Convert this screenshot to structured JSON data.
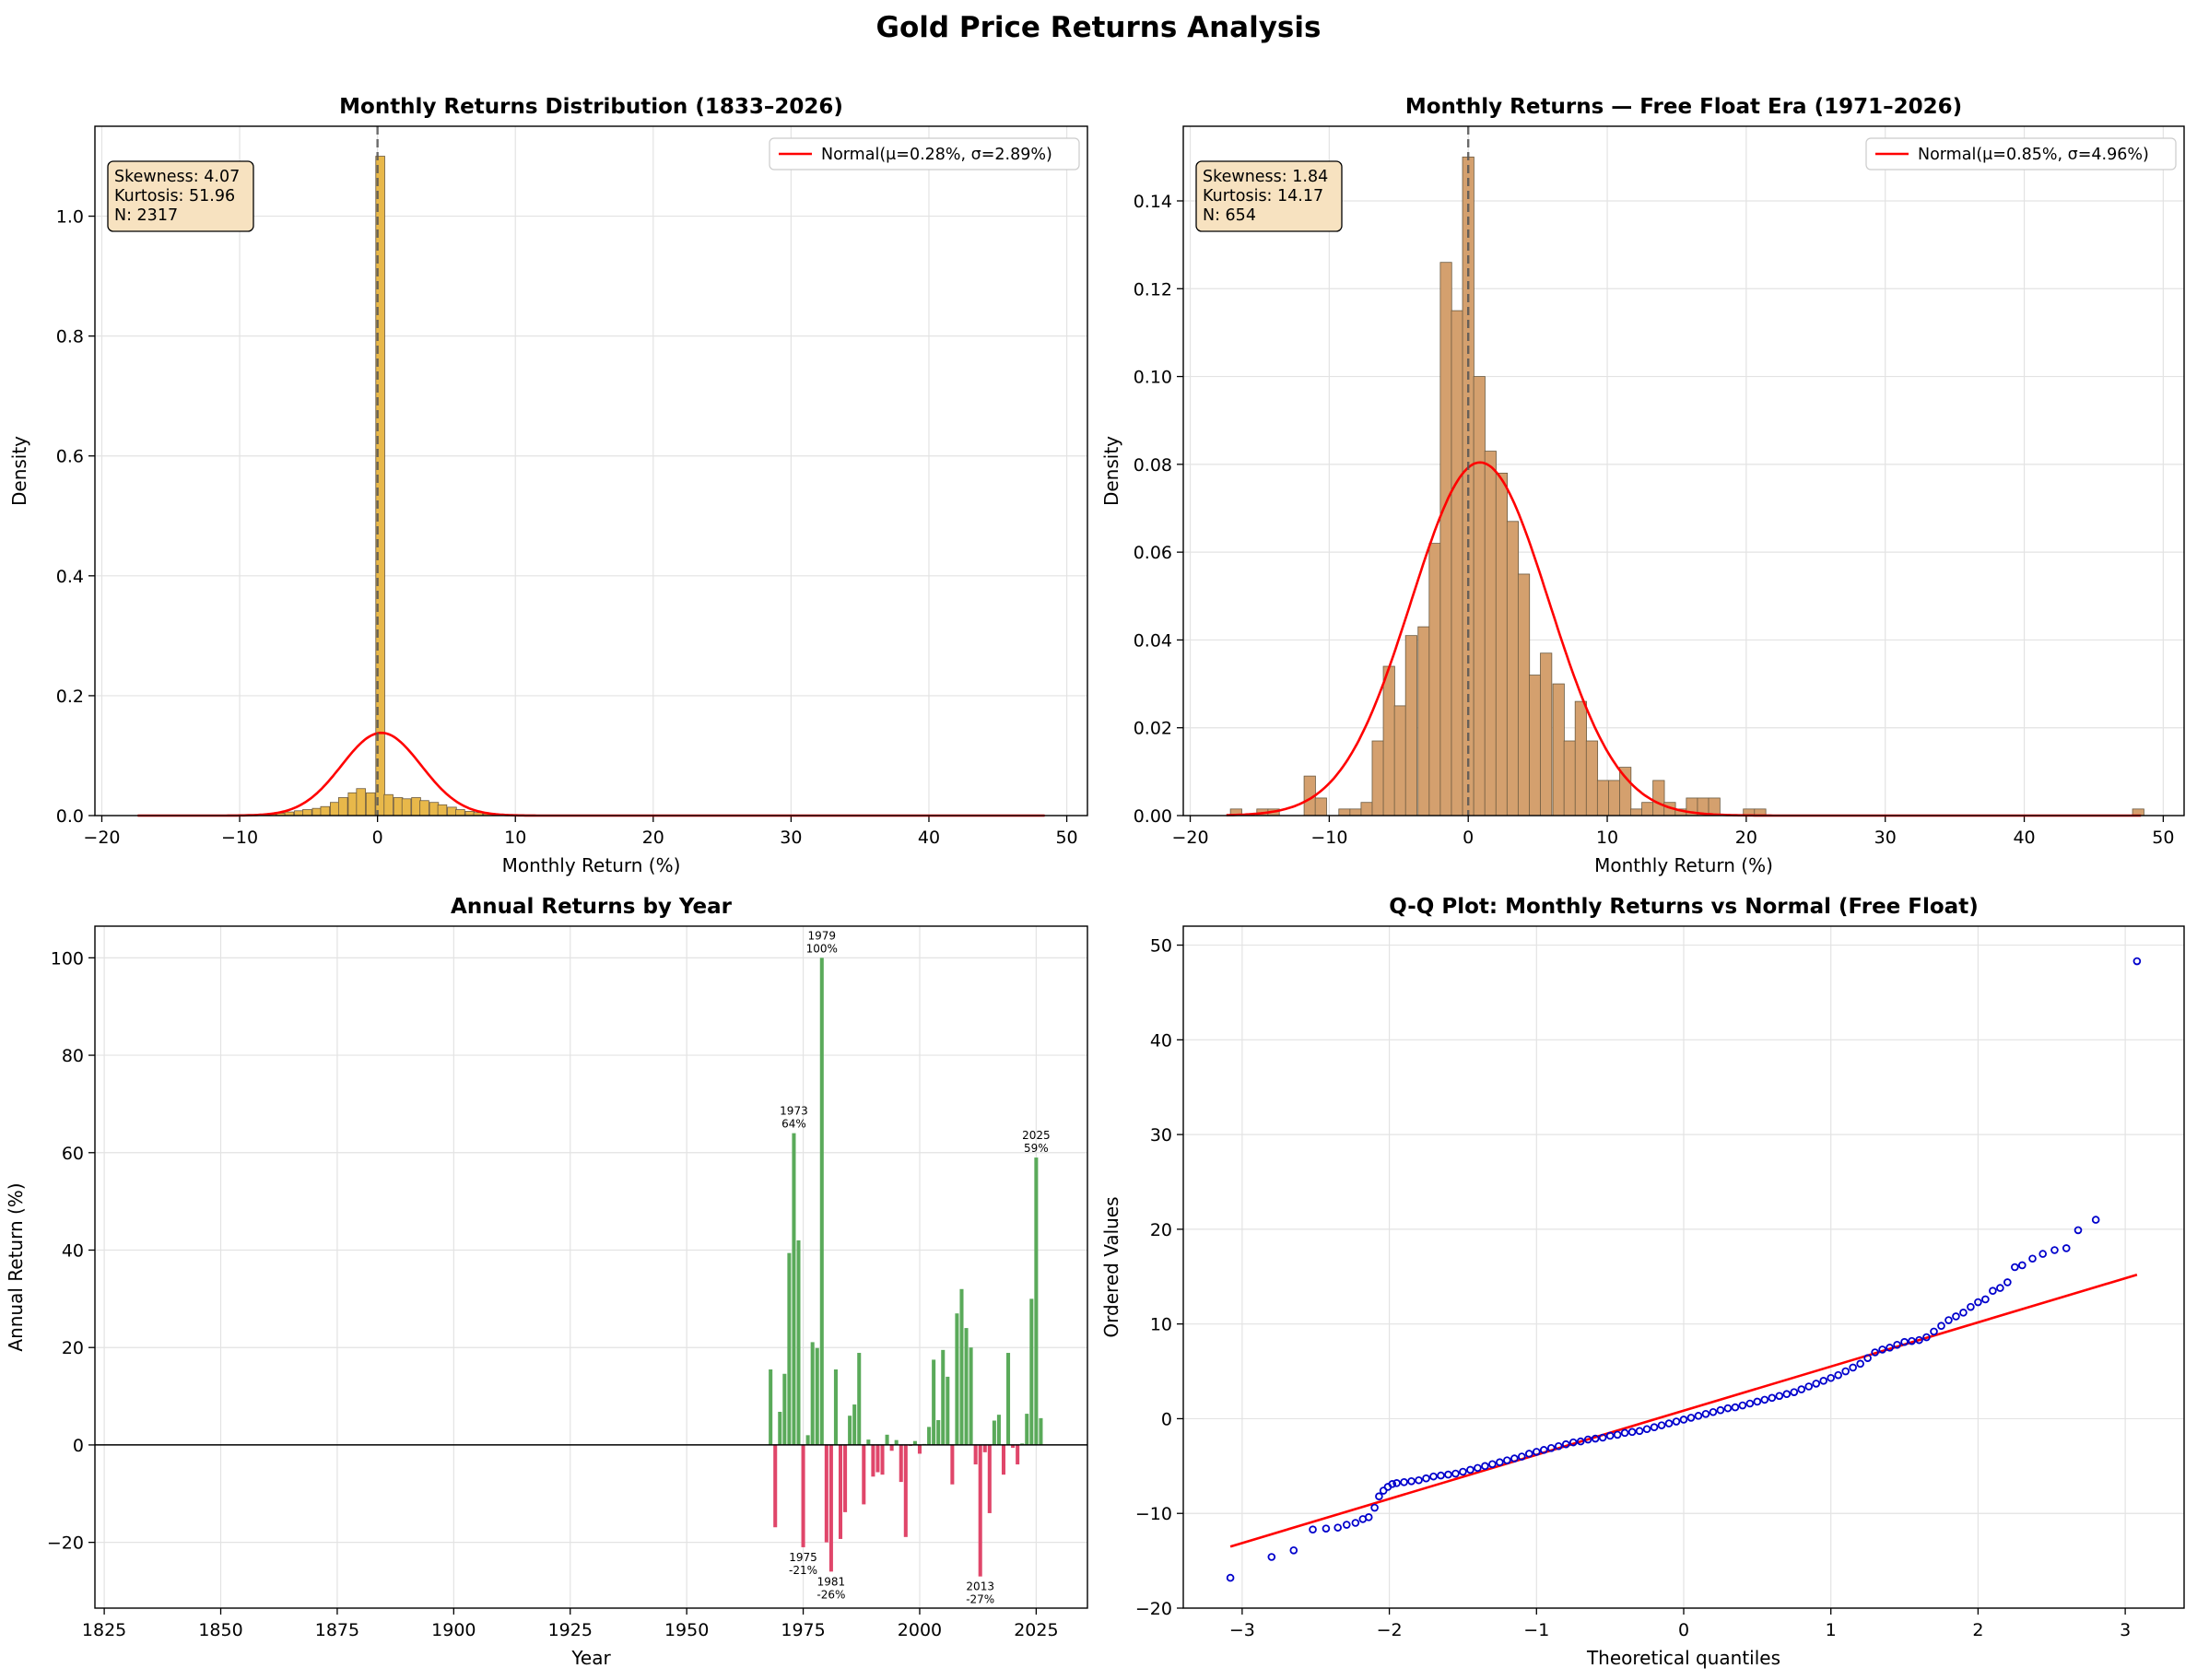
{
  "figure": {
    "title": "Gold Price Returns Analysis"
  },
  "colors": {
    "hist_all": "#e8b84a",
    "hist_free": "#d4a06e",
    "normal_line": "#ff0000",
    "bar_pos": "#5aaa5a",
    "bar_neg": "#e0466a",
    "qq_points": "#0000cc",
    "stats_box_fill": "#f7e2c0"
  },
  "chart_data": [
    {
      "id": "hist_all",
      "type": "bar",
      "title": "Monthly Returns Distribution (1833–2026)",
      "xlabel": "Monthly Return (%)",
      "ylabel": "Density",
      "xlim": [
        -20.5,
        51.5
      ],
      "ylim": [
        0,
        1.15
      ],
      "xticks": [
        -20,
        -10,
        0,
        10,
        20,
        30,
        40,
        50
      ],
      "yticks": [
        0.0,
        0.2,
        0.4,
        0.6,
        0.8,
        1.0
      ],
      "ytick_labels": [
        "0.0",
        "0.2",
        "0.4",
        "0.6",
        "0.8",
        "1.0"
      ],
      "grid": true,
      "legend": {
        "position": "top-right",
        "label": "Normal(μ=0.28%, σ=2.89%)"
      },
      "stats": [
        "Skewness: 4.07",
        "Kurtosis: 51.96",
        "N: 2317"
      ],
      "vline_x": 0,
      "normal": {
        "mu": 0.28,
        "sigma": 2.89,
        "xrange": [
          -17.4,
          48.4
        ]
      },
      "bins": [
        [
          -8.4,
          0.002
        ],
        [
          -7.7,
          0.003
        ],
        [
          -7.0,
          0.004
        ],
        [
          -6.4,
          0.006
        ],
        [
          -5.7,
          0.008
        ],
        [
          -5.1,
          0.01
        ],
        [
          -4.4,
          0.012
        ],
        [
          -3.8,
          0.015
        ],
        [
          -3.1,
          0.022
        ],
        [
          -2.5,
          0.03
        ],
        [
          -1.8,
          0.038
        ],
        [
          -1.2,
          0.045
        ],
        [
          -0.5,
          0.038
        ],
        [
          0.2,
          1.1
        ],
        [
          0.8,
          0.035
        ],
        [
          1.5,
          0.03
        ],
        [
          2.1,
          0.028
        ],
        [
          2.8,
          0.03
        ],
        [
          3.4,
          0.025
        ],
        [
          4.1,
          0.022
        ],
        [
          4.7,
          0.018
        ],
        [
          5.4,
          0.014
        ],
        [
          6.0,
          0.01
        ],
        [
          6.7,
          0.007
        ],
        [
          7.3,
          0.005
        ],
        [
          8.0,
          0.003
        ]
      ],
      "bin_width": 0.65
    },
    {
      "id": "hist_free",
      "type": "bar",
      "title": "Monthly Returns — Free Float Era (1971–2026)",
      "xlabel": "Monthly Return (%)",
      "ylabel": "Density",
      "xlim": [
        -20.5,
        51.5
      ],
      "ylim": [
        0,
        0.157
      ],
      "xticks": [
        -20,
        -10,
        0,
        10,
        20,
        30,
        40,
        50
      ],
      "yticks": [
        0.0,
        0.02,
        0.04,
        0.06,
        0.08,
        0.1,
        0.12,
        0.14
      ],
      "ytick_labels": [
        "0.00",
        "0.02",
        "0.04",
        "0.06",
        "0.08",
        "0.10",
        "0.12",
        "0.14"
      ],
      "grid": true,
      "legend": {
        "position": "top-right",
        "label": "Normal(μ=0.85%, σ=4.96%)"
      },
      "stats": [
        "Skewness: 1.84",
        "Kurtosis: 14.17",
        "N: 654"
      ],
      "vline_x": 0,
      "normal": {
        "mu": 0.85,
        "sigma": 4.96,
        "xrange": [
          -17.4,
          48.4
        ]
      },
      "bins": [
        [
          -16.7,
          0.0015
        ],
        [
          -14.8,
          0.0015
        ],
        [
          -14.0,
          0.0015
        ],
        [
          -11.4,
          0.009
        ],
        [
          -10.6,
          0.004
        ],
        [
          -8.9,
          0.0015
        ],
        [
          -8.1,
          0.0015
        ],
        [
          -7.3,
          0.003
        ],
        [
          -6.5,
          0.017
        ],
        [
          -5.7,
          0.034
        ],
        [
          -4.9,
          0.025
        ],
        [
          -4.1,
          0.041
        ],
        [
          -3.2,
          0.043
        ],
        [
          -2.4,
          0.062
        ],
        [
          -1.6,
          0.126
        ],
        [
          -0.8,
          0.115
        ],
        [
          0.0,
          0.15
        ],
        [
          0.8,
          0.1
        ],
        [
          1.6,
          0.083
        ],
        [
          2.4,
          0.078
        ],
        [
          3.2,
          0.067
        ],
        [
          4.0,
          0.055
        ],
        [
          4.8,
          0.032
        ],
        [
          5.6,
          0.037
        ],
        [
          6.5,
          0.03
        ],
        [
          7.3,
          0.017
        ],
        [
          8.1,
          0.026
        ],
        [
          8.9,
          0.017
        ],
        [
          9.7,
          0.008
        ],
        [
          10.5,
          0.008
        ],
        [
          11.3,
          0.011
        ],
        [
          12.1,
          0.0015
        ],
        [
          12.9,
          0.003
        ],
        [
          13.7,
          0.008
        ],
        [
          14.5,
          0.003
        ],
        [
          15.3,
          0.0015
        ],
        [
          16.1,
          0.004
        ],
        [
          16.9,
          0.004
        ],
        [
          17.7,
          0.004
        ],
        [
          20.2,
          0.0015
        ],
        [
          21.0,
          0.0015
        ],
        [
          48.2,
          0.0015
        ]
      ],
      "bin_width": 0.82
    },
    {
      "id": "annual",
      "type": "bar",
      "title": "Annual Returns by Year",
      "xlabel": "Year",
      "ylabel": "Annual Return (%)",
      "xlim": [
        1823,
        2036
      ],
      "ylim": [
        -33.5,
        106.5
      ],
      "xticks": [
        1825,
        1850,
        1875,
        1900,
        1925,
        1950,
        1975,
        2000,
        2025
      ],
      "yticks": [
        -20,
        0,
        20,
        40,
        60,
        80,
        100
      ],
      "grid": true,
      "zero_line": true,
      "years": [
        1968,
        1969,
        1970,
        1971,
        1972,
        1973,
        1974,
        1975,
        1976,
        1977,
        1978,
        1979,
        1980,
        1981,
        1982,
        1983,
        1984,
        1985,
        1986,
        1987,
        1988,
        1989,
        1990,
        1991,
        1992,
        1993,
        1994,
        1995,
        1996,
        1997,
        1998,
        1999,
        2000,
        2001,
        2002,
        2003,
        2004,
        2005,
        2006,
        2007,
        2008,
        2009,
        2010,
        2011,
        2012,
        2013,
        2014,
        2015,
        2016,
        2017,
        2018,
        2019,
        2020,
        2021,
        2022,
        2023,
        2024,
        2025,
        2026
      ],
      "values": [
        15.5,
        -16.9,
        6.8,
        14.6,
        39.4,
        64.0,
        42.0,
        -21.0,
        2.0,
        21.1,
        19.9,
        100.0,
        -20.0,
        -26.0,
        15.5,
        -19.3,
        -13.8,
        6.0,
        8.3,
        18.9,
        -12.2,
        1.1,
        -6.5,
        -5.6,
        -6.1,
        2.1,
        -1.2,
        1.0,
        -7.6,
        -18.9,
        -0.2,
        0.8,
        -1.8,
        0.2,
        3.7,
        17.5,
        5.1,
        19.5,
        14.0,
        -8.1,
        27.0,
        32.0,
        24.0,
        20.0,
        -4.0,
        -27.0,
        -1.5,
        -14.0,
        5.0,
        6.2,
        -6.1,
        18.9,
        -0.6,
        -4.0,
        0.3,
        6.4,
        30.0,
        59.0,
        5.5
      ],
      "annotations": [
        {
          "year": 1973,
          "label_year": "1973",
          "label_pct": "64%"
        },
        {
          "year": 1979,
          "label_year": "1979",
          "label_pct": "100%"
        },
        {
          "year": 2025,
          "label_year": "2025",
          "label_pct": "59%"
        },
        {
          "year": 1975,
          "label_year": "1975",
          "label_pct": "-21%"
        },
        {
          "year": 1981,
          "label_year": "1981",
          "label_pct": "-26%"
        },
        {
          "year": 2013,
          "label_year": "2013",
          "label_pct": "-27%"
        }
      ]
    },
    {
      "id": "qq",
      "type": "scatter",
      "title": "Q-Q Plot: Monthly Returns vs Normal (Free Float)",
      "xlabel": "Theoretical quantiles",
      "ylabel": "Ordered Values",
      "xlim": [
        -3.4,
        3.4
      ],
      "ylim": [
        -20,
        52
      ],
      "xticks": [
        -3,
        -2,
        -1,
        0,
        1,
        2,
        3
      ],
      "xtick_labels": [
        "−3",
        "−2",
        "−1",
        "0",
        "1",
        "2",
        "3"
      ],
      "yticks": [
        -20,
        -10,
        0,
        10,
        20,
        30,
        40,
        50
      ],
      "grid": true,
      "fit_line": {
        "x": [
          -3.08,
          3.08
        ],
        "y": [
          -13.5,
          15.2
        ]
      },
      "points": [
        [
          -3.08,
          -16.8
        ],
        [
          -2.8,
          -14.6
        ],
        [
          -2.65,
          -13.9
        ],
        [
          -2.52,
          -11.7
        ],
        [
          -2.43,
          -11.6
        ],
        [
          -2.35,
          -11.5
        ],
        [
          -2.29,
          -11.2
        ],
        [
          -2.23,
          -11.0
        ],
        [
          -2.18,
          -10.6
        ],
        [
          -2.14,
          -10.4
        ],
        [
          -2.1,
          -9.4
        ],
        [
          -2.07,
          -8.2
        ],
        [
          -2.04,
          -7.6
        ],
        [
          -2.01,
          -7.2
        ],
        [
          -1.98,
          -6.9
        ],
        [
          -1.95,
          -6.8
        ],
        [
          -1.9,
          -6.7
        ],
        [
          -1.85,
          -6.6
        ],
        [
          -1.8,
          -6.5
        ],
        [
          -1.75,
          -6.3
        ],
        [
          -1.7,
          -6.1
        ],
        [
          -1.65,
          -6.0
        ],
        [
          -1.6,
          -5.9
        ],
        [
          -1.55,
          -5.8
        ],
        [
          -1.5,
          -5.6
        ],
        [
          -1.45,
          -5.4
        ],
        [
          -1.4,
          -5.2
        ],
        [
          -1.35,
          -5.0
        ],
        [
          -1.3,
          -4.8
        ],
        [
          -1.25,
          -4.6
        ],
        [
          -1.2,
          -4.4
        ],
        [
          -1.15,
          -4.2
        ],
        [
          -1.1,
          -4.0
        ],
        [
          -1.05,
          -3.7
        ],
        [
          -1.0,
          -3.5
        ],
        [
          -0.95,
          -3.3
        ],
        [
          -0.9,
          -3.1
        ],
        [
          -0.85,
          -2.9
        ],
        [
          -0.8,
          -2.7
        ],
        [
          -0.75,
          -2.5
        ],
        [
          -0.7,
          -2.4
        ],
        [
          -0.65,
          -2.2
        ],
        [
          -0.6,
          -2.1
        ],
        [
          -0.55,
          -2.0
        ],
        [
          -0.5,
          -1.8
        ],
        [
          -0.45,
          -1.7
        ],
        [
          -0.4,
          -1.5
        ],
        [
          -0.35,
          -1.4
        ],
        [
          -0.3,
          -1.3
        ],
        [
          -0.25,
          -1.1
        ],
        [
          -0.2,
          -0.9
        ],
        [
          -0.15,
          -0.7
        ],
        [
          -0.1,
          -0.5
        ],
        [
          -0.05,
          -0.3
        ],
        [
          0.0,
          -0.1
        ],
        [
          0.05,
          0.1
        ],
        [
          0.1,
          0.3
        ],
        [
          0.15,
          0.5
        ],
        [
          0.2,
          0.7
        ],
        [
          0.25,
          0.9
        ],
        [
          0.3,
          1.1
        ],
        [
          0.35,
          1.2
        ],
        [
          0.4,
          1.4
        ],
        [
          0.45,
          1.6
        ],
        [
          0.5,
          1.8
        ],
        [
          0.55,
          2.0
        ],
        [
          0.6,
          2.2
        ],
        [
          0.65,
          2.4
        ],
        [
          0.7,
          2.6
        ],
        [
          0.75,
          2.8
        ],
        [
          0.8,
          3.1
        ],
        [
          0.85,
          3.4
        ],
        [
          0.9,
          3.7
        ],
        [
          0.95,
          4.0
        ],
        [
          1.0,
          4.3
        ],
        [
          1.05,
          4.6
        ],
        [
          1.1,
          5.0
        ],
        [
          1.15,
          5.4
        ],
        [
          1.2,
          5.8
        ],
        [
          1.25,
          6.4
        ],
        [
          1.3,
          7.0
        ],
        [
          1.35,
          7.3
        ],
        [
          1.4,
          7.5
        ],
        [
          1.45,
          7.8
        ],
        [
          1.5,
          8.1
        ],
        [
          1.55,
          8.2
        ],
        [
          1.6,
          8.3
        ],
        [
          1.65,
          8.6
        ],
        [
          1.7,
          9.2
        ],
        [
          1.75,
          9.8
        ],
        [
          1.8,
          10.4
        ],
        [
          1.85,
          10.8
        ],
        [
          1.9,
          11.2
        ],
        [
          1.95,
          11.8
        ],
        [
          2.0,
          12.3
        ],
        [
          2.05,
          12.6
        ],
        [
          2.1,
          13.5
        ],
        [
          2.15,
          13.8
        ],
        [
          2.2,
          14.4
        ],
        [
          2.25,
          16.0
        ],
        [
          2.3,
          16.2
        ],
        [
          2.37,
          16.9
        ],
        [
          2.44,
          17.4
        ],
        [
          2.52,
          17.8
        ],
        [
          2.6,
          18.0
        ],
        [
          2.68,
          19.9
        ],
        [
          2.8,
          21.0
        ],
        [
          3.08,
          48.3
        ]
      ]
    }
  ]
}
